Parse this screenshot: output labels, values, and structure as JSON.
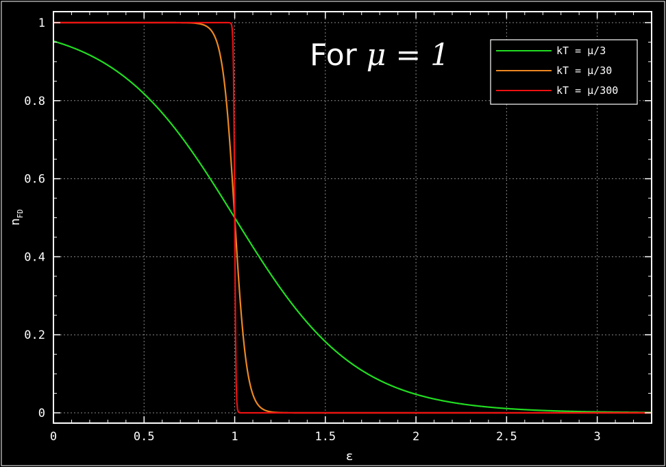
{
  "chart_data": {
    "type": "line",
    "annotation": {
      "prefix": "For",
      "math": "μ = 1"
    },
    "xlabel": "ε",
    "ylabel_main": "n",
    "ylabel_sub": "FD",
    "xlim": [
      0,
      3.3
    ],
    "ylim": [
      0,
      1
    ],
    "xticks": [
      {
        "value": 0,
        "label": "0"
      },
      {
        "value": 0.5,
        "label": "0.5"
      },
      {
        "value": 1,
        "label": "1"
      },
      {
        "value": 1.5,
        "label": "1.5"
      },
      {
        "value": 2,
        "label": "2"
      },
      {
        "value": 2.5,
        "label": "2.5"
      },
      {
        "value": 3,
        "label": "3"
      }
    ],
    "yticks": [
      {
        "value": 0,
        "label": "0"
      },
      {
        "value": 0.2,
        "label": "0.2"
      },
      {
        "value": 0.4,
        "label": "0.4"
      },
      {
        "value": 0.6,
        "label": "0.6"
      },
      {
        "value": 0.8,
        "label": "0.8"
      },
      {
        "value": 1,
        "label": "1"
      }
    ],
    "grid": true,
    "legend_position": "top-right",
    "background": "#000000",
    "mu": 1,
    "x_samples": [
      0,
      0.1,
      0.2,
      0.3,
      0.4,
      0.5,
      0.6,
      0.7,
      0.8,
      0.85,
      0.9,
      0.95,
      0.97,
      0.99,
      1.0,
      1.01,
      1.03,
      1.05,
      1.1,
      1.15,
      1.2,
      1.3,
      1.4,
      1.5,
      1.6,
      1.8,
      2.0,
      2.2,
      2.4,
      2.6,
      2.8,
      3.0,
      3.2,
      3.3
    ],
    "series": [
      {
        "name": "kT = μ/3",
        "color": "#22dd22",
        "values": [
          0.953,
          0.931,
          0.9,
          0.858,
          0.858,
          0.818,
          0.769,
          0.711,
          0.646,
          0.611,
          0.574,
          0.537,
          0.522,
          0.507,
          0.5,
          0.493,
          0.478,
          0.463,
          0.426,
          0.389,
          0.354,
          0.289,
          0.231,
          0.182,
          0.142,
          0.083,
          0.047,
          0.027,
          0.015,
          0.008,
          0.004,
          0.002,
          0.001,
          0.001
        ]
      },
      {
        "name": "kT = μ/30",
        "color": "#ee8822",
        "values": [
          1.0,
          1.0,
          1.0,
          1.0,
          1.0,
          1.0,
          1.0,
          1.0,
          0.998,
          0.989,
          0.953,
          0.818,
          0.711,
          0.574,
          0.5,
          0.426,
          0.289,
          0.182,
          0.047,
          0.011,
          0.002,
          0.0,
          0.0,
          0.0,
          0.0,
          0.0,
          0.0,
          0.0,
          0.0,
          0.0,
          0.0,
          0.0,
          0.0,
          0.0
        ]
      },
      {
        "name": "kT = μ/300",
        "color": "#ee1111",
        "values": [
          1.0,
          1.0,
          1.0,
          1.0,
          1.0,
          1.0,
          1.0,
          1.0,
          1.0,
          1.0,
          1.0,
          1.0,
          1.0,
          0.953,
          0.5,
          0.047,
          0.0,
          0.0,
          0.0,
          0.0,
          0.0,
          0.0,
          0.0,
          0.0,
          0.0,
          0.0,
          0.0,
          0.0,
          0.0,
          0.0,
          0.0,
          0.0,
          0.0,
          0.0
        ]
      }
    ]
  }
}
